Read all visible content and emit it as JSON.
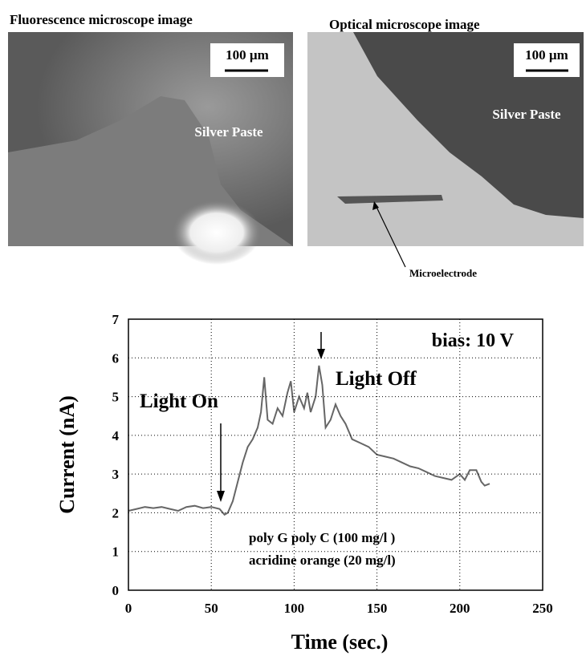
{
  "images": [
    {
      "title": "Fluorescence microscope image",
      "scale": "100 µm",
      "label": "Silver Paste"
    },
    {
      "title": "Optical microscope image",
      "scale": "100 µm",
      "label": "Silver Paste"
    }
  ],
  "pointer": "Microelectrode",
  "chart_data": {
    "type": "line",
    "xlabel": "Time (sec.)",
    "ylabel": "Current (nA)",
    "annotations": [
      "bias: 10 V",
      "Light On",
      "Light Off",
      "poly G poly C (100 mg/l )",
      "acridine orange (20 mg/l)"
    ],
    "x": [
      0,
      5,
      10,
      15,
      20,
      25,
      30,
      35,
      40,
      45,
      50,
      55,
      58,
      60,
      63,
      66,
      69,
      72,
      75,
      78,
      80,
      82,
      84,
      87,
      90,
      93,
      96,
      98,
      100,
      103,
      106,
      108,
      110,
      113,
      115,
      117,
      119,
      122,
      125,
      128,
      131,
      135,
      140,
      145,
      150,
      155,
      160,
      165,
      170,
      175,
      180,
      185,
      190,
      195,
      200,
      203,
      206,
      210,
      213,
      215,
      218
    ],
    "values": [
      2.05,
      2.1,
      2.15,
      2.12,
      2.15,
      2.1,
      2.05,
      2.15,
      2.18,
      2.12,
      2.15,
      2.1,
      1.95,
      2.0,
      2.3,
      2.8,
      3.3,
      3.7,
      3.9,
      4.2,
      4.6,
      5.5,
      4.4,
      4.3,
      4.7,
      4.5,
      5.1,
      5.4,
      4.6,
      5.0,
      4.7,
      5.1,
      4.6,
      5.0,
      5.8,
      5.3,
      4.2,
      4.4,
      4.8,
      4.5,
      4.3,
      3.9,
      3.8,
      3.7,
      3.5,
      3.45,
      3.4,
      3.3,
      3.2,
      3.15,
      3.05,
      2.95,
      2.9,
      2.85,
      3.0,
      2.85,
      3.1,
      3.1,
      2.8,
      2.7,
      2.75
    ],
    "color": "#666666",
    "xlim": [
      0,
      250
    ],
    "ylim": [
      0,
      7
    ],
    "xticks": [
      0,
      50,
      100,
      150,
      200,
      250
    ],
    "yticks": [
      0,
      1,
      2,
      3,
      4,
      5,
      6,
      7
    ],
    "grid": true
  }
}
